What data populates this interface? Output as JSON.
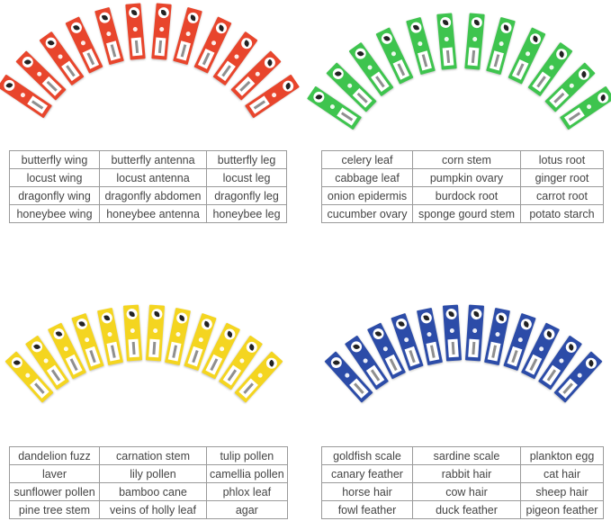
{
  "colors": {
    "insect": "#e8452c",
    "plant": "#3ec44e",
    "botany": "#f4d520",
    "animal": "#2c4ca8"
  },
  "tables": [
    {
      "name": "insect-table",
      "rows": [
        [
          "butterfly wing",
          "butterfly antenna",
          "butterfly leg"
        ],
        [
          "locust wing",
          "locust antenna",
          "locust leg"
        ],
        [
          "dragonfly wing",
          "dragonfly abdomen",
          "dragonfly leg"
        ],
        [
          "honeybee wing",
          "honeybee antenna",
          "honeybee leg"
        ]
      ]
    },
    {
      "name": "plant-table",
      "rows": [
        [
          "celery leaf",
          "corn stem",
          "lotus root"
        ],
        [
          "cabbage leaf",
          "pumpkin ovary",
          "ginger root"
        ],
        [
          "onion epidermis",
          "burdock root",
          "carrot root"
        ],
        [
          "cucumber ovary",
          "sponge gourd stem",
          "potato starch"
        ]
      ]
    },
    {
      "name": "botany-table",
      "rows": [
        [
          "dandelion fuzz",
          "carnation stem",
          "tulip pollen"
        ],
        [
          "laver",
          "lily pollen",
          "camellia pollen"
        ],
        [
          "sunflower pollen",
          "bamboo cane",
          "phlox leaf"
        ],
        [
          "pine tree stem",
          "veins of holly leaf",
          "agar"
        ]
      ]
    },
    {
      "name": "animal-table",
      "rows": [
        [
          "goldfish scale",
          "sardine scale",
          "plankton egg"
        ],
        [
          "canary feather",
          "rabbit hair",
          "cat hair"
        ],
        [
          "horse hair",
          "cow hair",
          "sheep hair"
        ],
        [
          "fowl feather",
          "duck feather",
          "pigeon feather"
        ]
      ]
    }
  ]
}
